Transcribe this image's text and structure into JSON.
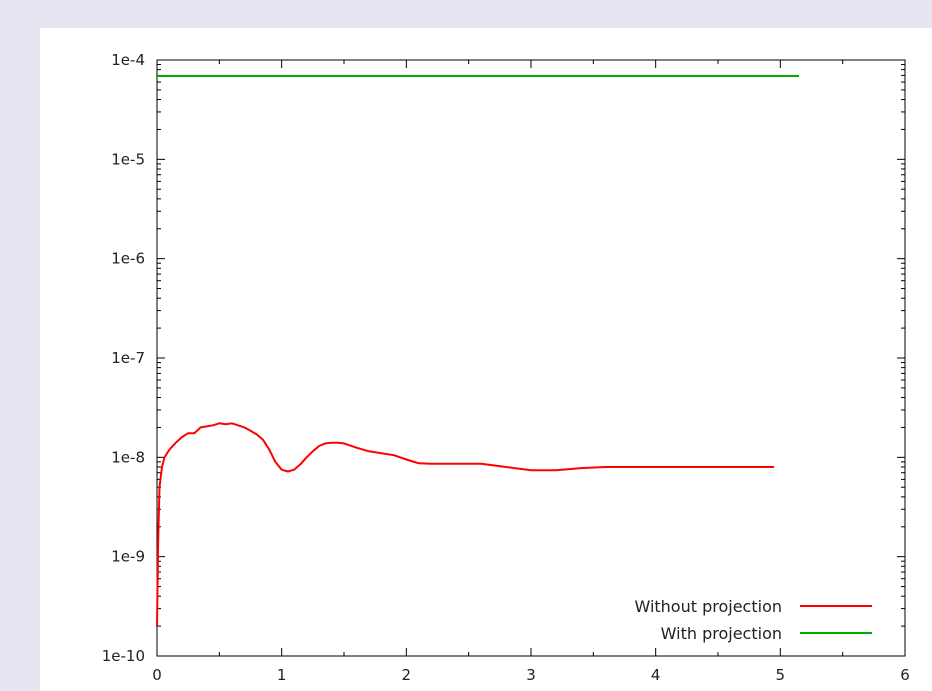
{
  "chart_data": {
    "type": "line",
    "title": "",
    "xlabel": "",
    "ylabel": "",
    "xlim": [
      0,
      6
    ],
    "ylim": [
      1e-10,
      0.0001
    ],
    "yscale": "log",
    "grid": false,
    "legend_position": "bottom-right",
    "x_ticks": [
      {
        "value": 0,
        "label": "0"
      },
      {
        "value": 1,
        "label": "1"
      },
      {
        "value": 2,
        "label": "2"
      },
      {
        "value": 3,
        "label": "3"
      },
      {
        "value": 4,
        "label": "4"
      },
      {
        "value": 5,
        "label": "5"
      },
      {
        "value": 6,
        "label": "6"
      }
    ],
    "y_ticks": [
      {
        "value": 1e-10,
        "label": "1e-10"
      },
      {
        "value": 1e-09,
        "label": "1e-9"
      },
      {
        "value": 1e-08,
        "label": "1e-8"
      },
      {
        "value": 1e-07,
        "label": "1e-7"
      },
      {
        "value": 1e-06,
        "label": "1e-6"
      },
      {
        "value": 1e-05,
        "label": "1e-5"
      },
      {
        "value": 0.0001,
        "label": "1e-4"
      }
    ],
    "series": [
      {
        "name": "Without projection",
        "color": "#ff0000",
        "points": [
          [
            0.0,
            2e-10
          ],
          [
            0.01,
            1.5e-09
          ],
          [
            0.02,
            5e-09
          ],
          [
            0.04,
            8e-09
          ],
          [
            0.06,
            1e-08
          ],
          [
            0.1,
            1.2e-08
          ],
          [
            0.15,
            1.4e-08
          ],
          [
            0.2,
            1.6e-08
          ],
          [
            0.25,
            1.75e-08
          ],
          [
            0.3,
            1.75e-08
          ],
          [
            0.35,
            2e-08
          ],
          [
            0.45,
            2.1e-08
          ],
          [
            0.5,
            2.2e-08
          ],
          [
            0.55,
            2.15e-08
          ],
          [
            0.6,
            2.2e-08
          ],
          [
            0.65,
            2.1e-08
          ],
          [
            0.7,
            2e-08
          ],
          [
            0.75,
            1.85e-08
          ],
          [
            0.8,
            1.7e-08
          ],
          [
            0.85,
            1.5e-08
          ],
          [
            0.9,
            1.2e-08
          ],
          [
            0.95,
            9e-09
          ],
          [
            1.0,
            7.5e-09
          ],
          [
            1.05,
            7.2e-09
          ],
          [
            1.1,
            7.5e-09
          ],
          [
            1.15,
            8.5e-09
          ],
          [
            1.2,
            1e-08
          ],
          [
            1.25,
            1.15e-08
          ],
          [
            1.3,
            1.3e-08
          ],
          [
            1.35,
            1.38e-08
          ],
          [
            1.4,
            1.4e-08
          ],
          [
            1.45,
            1.4e-08
          ],
          [
            1.5,
            1.38e-08
          ],
          [
            1.6,
            1.25e-08
          ],
          [
            1.7,
            1.15e-08
          ],
          [
            1.8,
            1.1e-08
          ],
          [
            1.9,
            1.05e-08
          ],
          [
            2.0,
            9.5e-09
          ],
          [
            2.1,
            8.7e-09
          ],
          [
            2.2,
            8.6e-09
          ],
          [
            2.4,
            8.6e-09
          ],
          [
            2.6,
            8.6e-09
          ],
          [
            2.8,
            8e-09
          ],
          [
            3.0,
            7.4e-09
          ],
          [
            3.2,
            7.4e-09
          ],
          [
            3.4,
            7.8e-09
          ],
          [
            3.6,
            8e-09
          ],
          [
            3.8,
            8e-09
          ],
          [
            4.0,
            8e-09
          ],
          [
            4.5,
            8e-09
          ],
          [
            4.95,
            8e-09
          ]
        ]
      },
      {
        "name": "With projection",
        "color": "#00aa00",
        "points": [
          [
            0.0,
            6.9e-05
          ],
          [
            5.15,
            6.9e-05
          ]
        ]
      }
    ]
  }
}
